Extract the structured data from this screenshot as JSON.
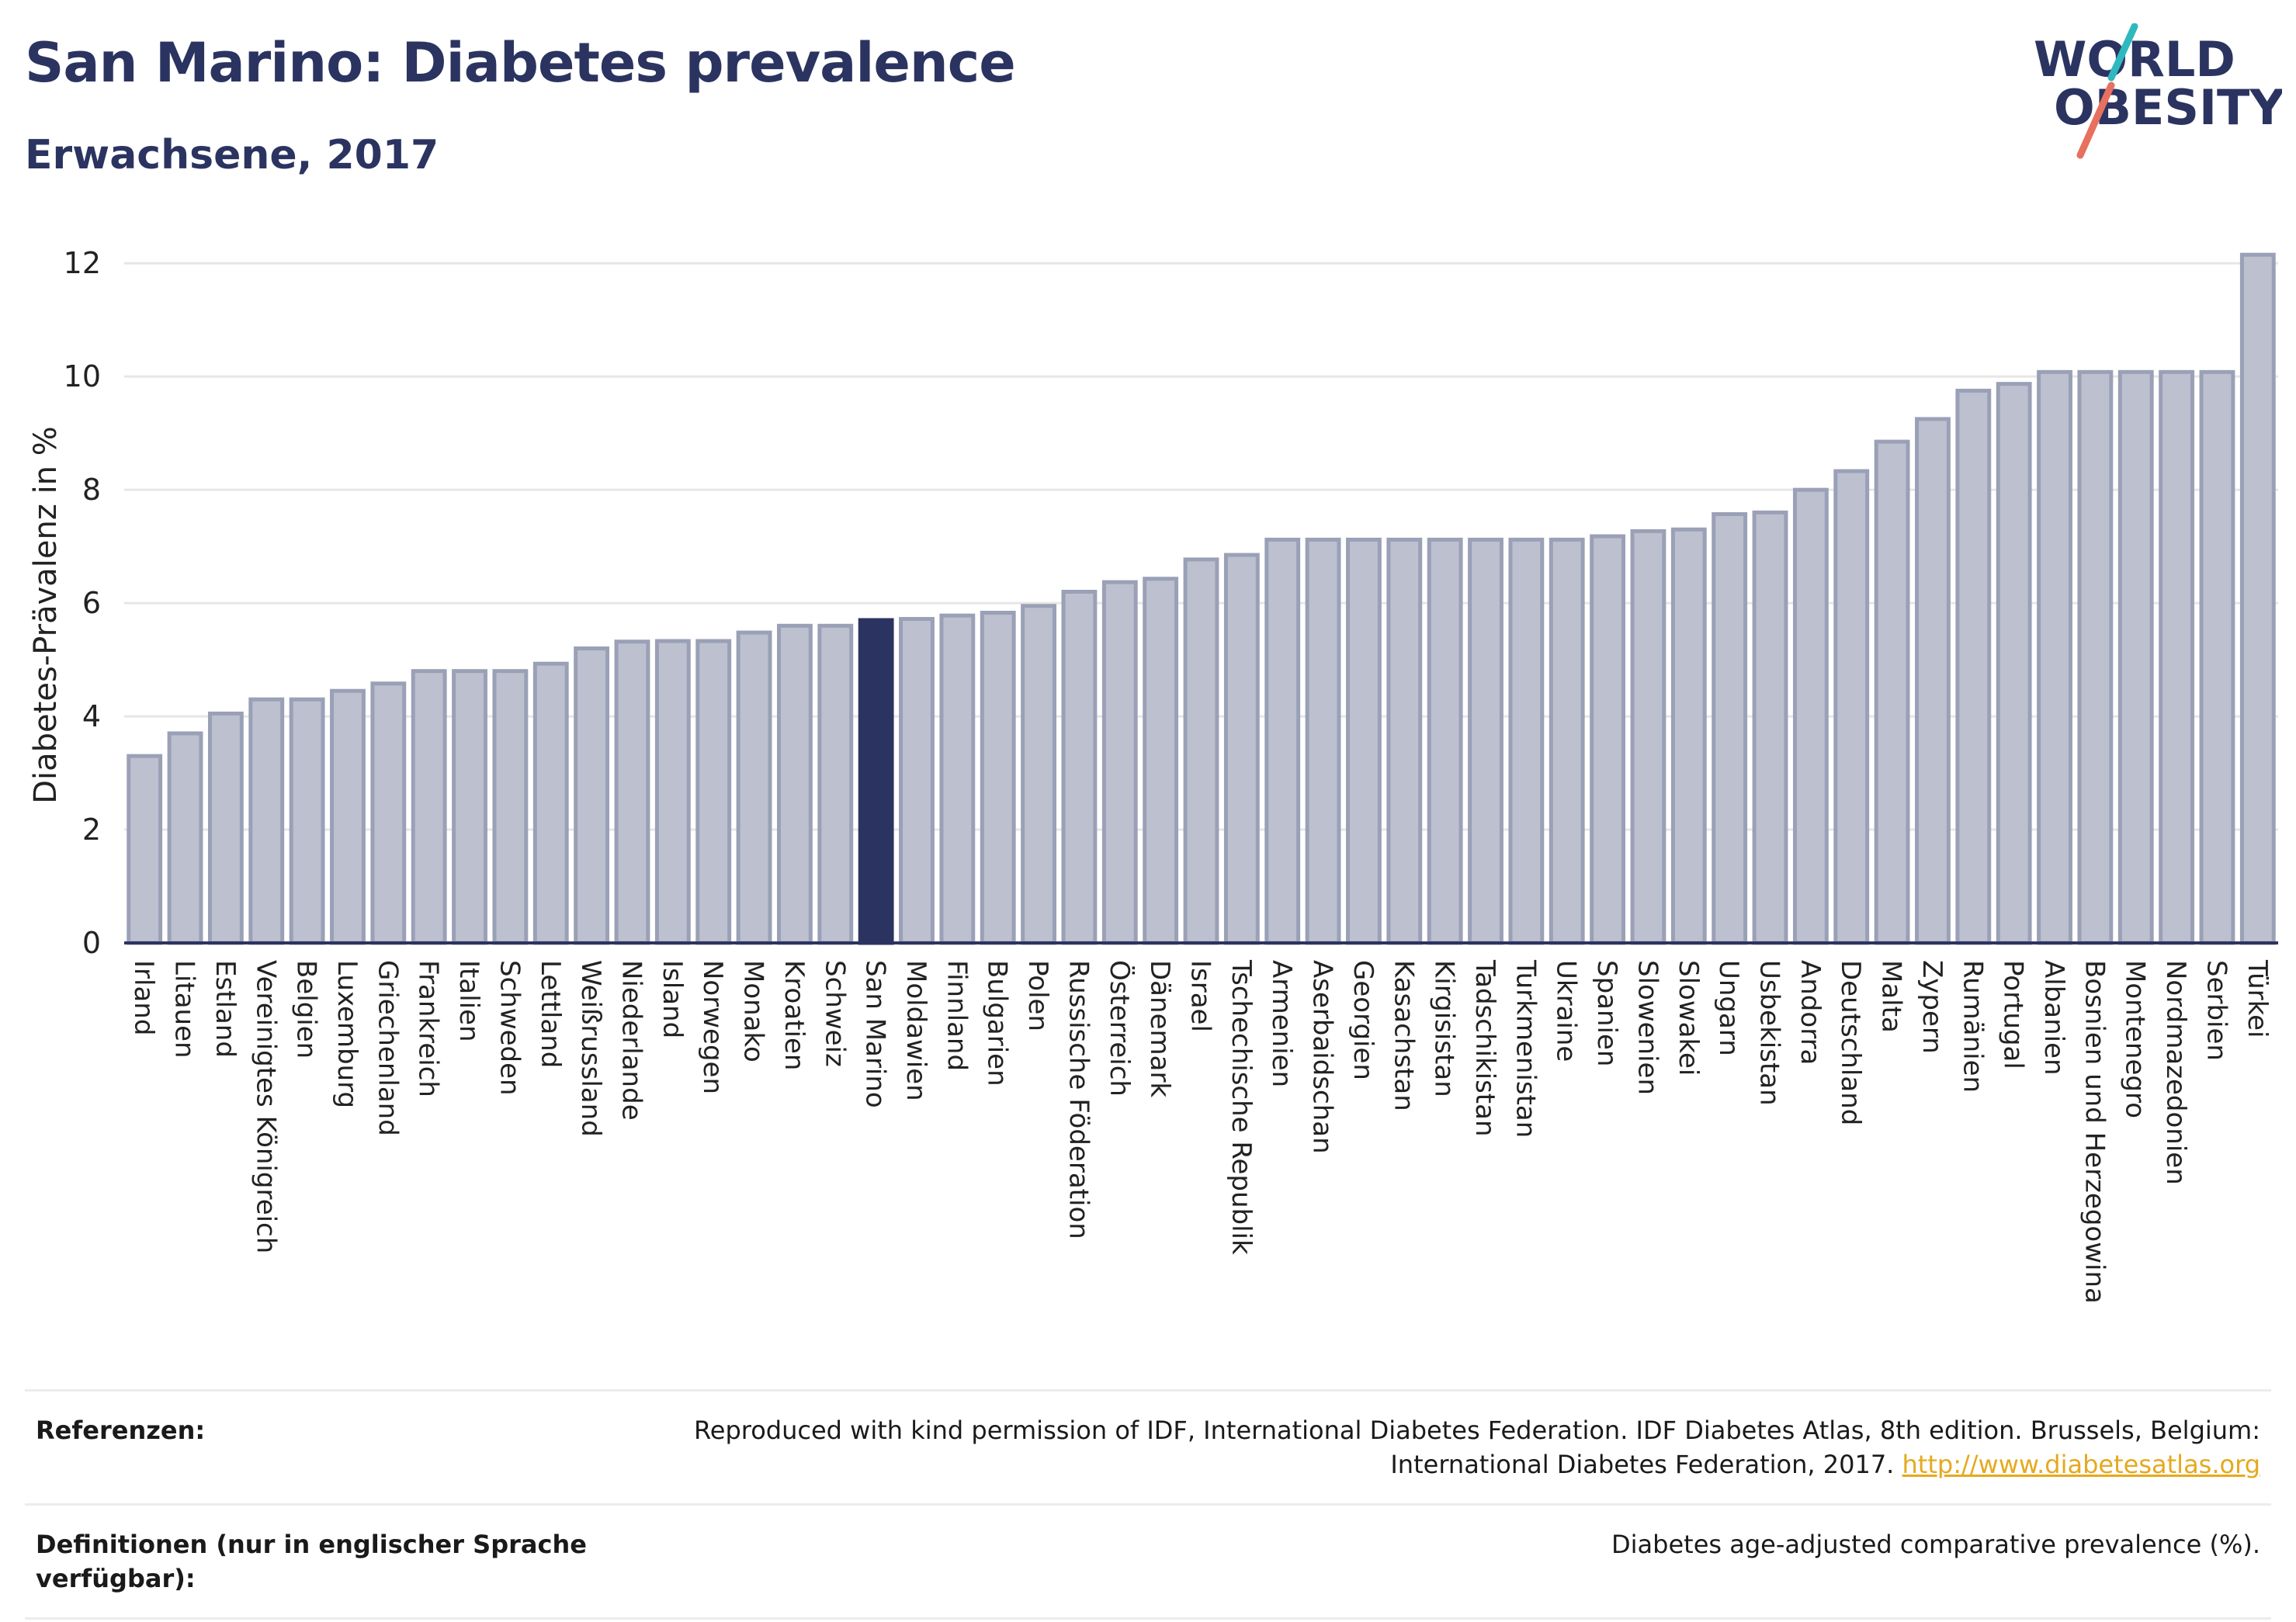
{
  "header": {
    "title": "San Marino: Diabetes prevalence",
    "subtitle": "Erwachsene, 2017"
  },
  "logo": {
    "line1": "WORLD",
    "line2": "OBESITY",
    "colors": {
      "text": "#2b3460",
      "slash_teal": "#2fb8bf",
      "slash_coral": "#e8705f"
    }
  },
  "colors": {
    "bar_fill": "#bcc0cf",
    "bar_stroke": "#9aa0b6",
    "highlight": "#2b3460",
    "grid": "#e6e6e6",
    "axis": "#2b3460"
  },
  "chart_data": {
    "type": "bar",
    "title": "San Marino: Diabetes prevalence",
    "subtitle": "Erwachsene, 2017",
    "xlabel": "",
    "ylabel": "Diabetes-Prävalenz in %",
    "ylim": [
      0,
      12.4
    ],
    "yticks": [
      0,
      2,
      4,
      6,
      8,
      10,
      12
    ],
    "grid": true,
    "highlight": "San Marino",
    "categories": [
      "Irland",
      "Litauen",
      "Estland",
      "Vereinigtes Königreich",
      "Belgien",
      "Luxemburg",
      "Griechenland",
      "Frankreich",
      "Italien",
      "Schweden",
      "Lettland",
      "Weißrussland",
      "Niederlande",
      "Island",
      "Norwegen",
      "Monako",
      "Kroatien",
      "Schweiz",
      "San Marino",
      "Moldawien",
      "Finnland",
      "Bulgarien",
      "Polen",
      "Russische Föderation",
      "Österreich",
      "Dänemark",
      "Israel",
      "Tschechische Republik",
      "Armenien",
      "Aserbaidschan",
      "Georgien",
      "Kasachstan",
      "Kirgisistan",
      "Tadschikistan",
      "Turkmenistan",
      "Ukraine",
      "Spanien",
      "Slowenien",
      "Slowakei",
      "Ungarn",
      "Usbekistan",
      "Andorra",
      "Deutschland",
      "Malta",
      "Zypern",
      "Rumänien",
      "Portugal",
      "Albanien",
      "Bosnien und Herzegowina",
      "Montenegro",
      "Nordmazedonien",
      "Serbien",
      "Türkei"
    ],
    "values": [
      3.3,
      3.7,
      4.05,
      4.3,
      4.3,
      4.45,
      4.58,
      4.8,
      4.8,
      4.8,
      4.93,
      5.2,
      5.32,
      5.33,
      5.33,
      5.48,
      5.6,
      5.6,
      5.7,
      5.72,
      5.78,
      5.83,
      5.95,
      6.2,
      6.37,
      6.43,
      6.77,
      6.85,
      7.12,
      7.12,
      7.12,
      7.12,
      7.12,
      7.12,
      7.12,
      7.12,
      7.18,
      7.27,
      7.3,
      7.57,
      7.6,
      8.0,
      8.33,
      8.85,
      9.25,
      9.75,
      9.87,
      10.08,
      10.08,
      10.08,
      10.08,
      10.08,
      12.15
    ]
  },
  "footer": {
    "references_label": "Referenzen:",
    "references_text_line1": "Reproduced with kind permission of IDF, International Diabetes Federation. IDF Diabetes Atlas, 8th edition. Brussels, Belgium:",
    "references_text_line2": "International Diabetes Federation, 2017.",
    "references_link": "http://www.diabetesatlas.org",
    "definitions_label": "Definitionen (nur in englischer Sprache verfügbar):",
    "definitions_text": "Diabetes age-adjusted comparative prevalence (%)."
  }
}
